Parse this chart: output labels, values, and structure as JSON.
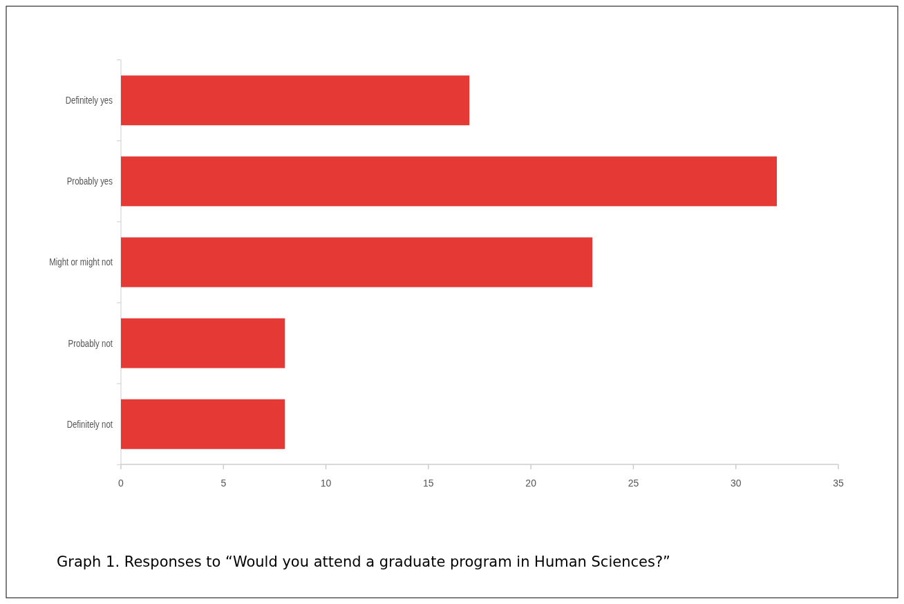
{
  "chart_data": {
    "type": "bar",
    "orientation": "horizontal",
    "categories": [
      "Definitely yes",
      "Probably yes",
      "Might or might not",
      "Probably not",
      "Definitely not"
    ],
    "values": [
      17,
      32,
      23,
      8,
      8
    ],
    "color": "#e53935",
    "xlim": [
      0,
      35
    ],
    "xticks": [
      0,
      5,
      10,
      15,
      20,
      25,
      30,
      35
    ],
    "grid": false,
    "annotations": [
      "Graph 1. Responses to “Would you attend a graduate program in Human Sciences?”"
    ]
  }
}
